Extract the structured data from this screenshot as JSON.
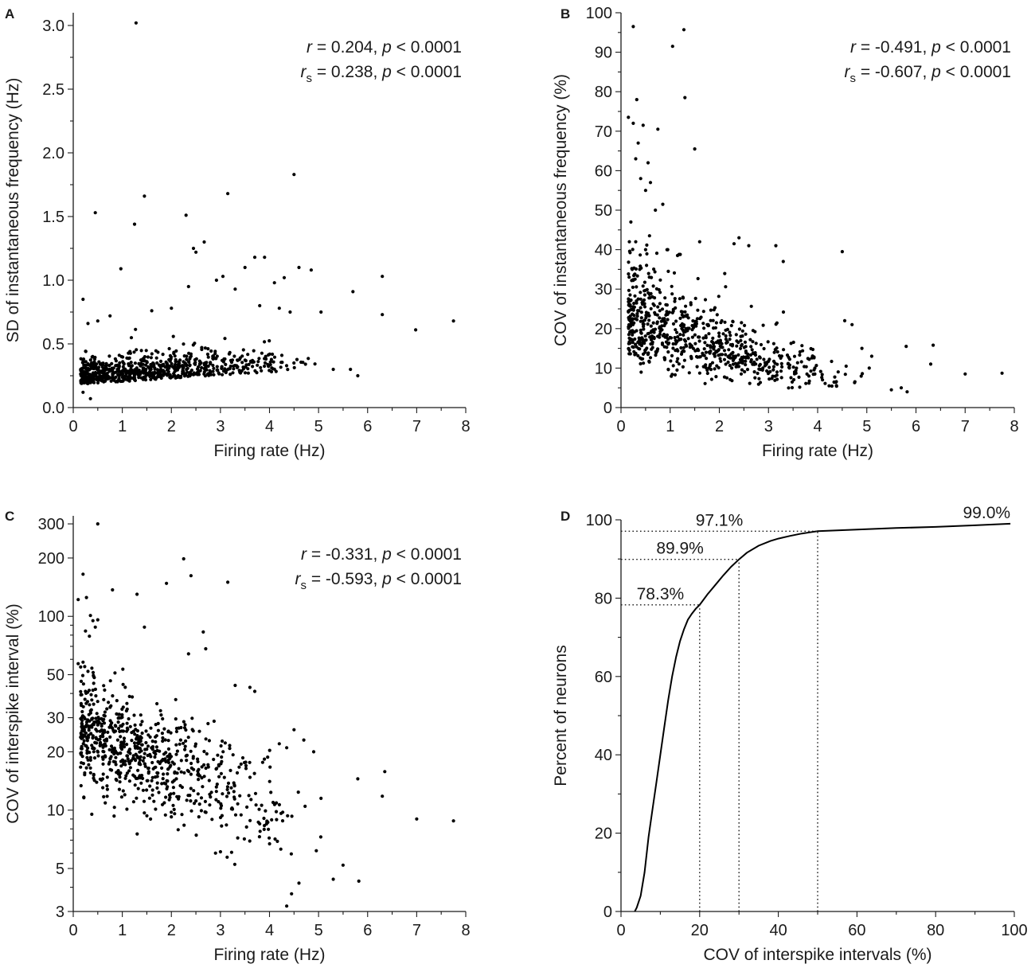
{
  "chart_data": [
    {
      "panel": "A",
      "type": "scatter",
      "xlabel": "Firing rate (Hz)",
      "ylabel": "SD of instantaneous frequency (Hz)",
      "xlim": [
        0,
        8
      ],
      "ylim": [
        0,
        3.1
      ],
      "xticks": [
        "0",
        "1",
        "2",
        "3",
        "4",
        "5",
        "6",
        "7",
        "8"
      ],
      "yticks": [
        "0.0",
        "0.5",
        "1.0",
        "1.5",
        "2.0",
        "2.5",
        "3.0"
      ],
      "stats": {
        "line1_sym": "r",
        "line1_val": " = 0.204, ",
        "line1_p": "p",
        "line1_pval": " < 0.0001",
        "line2_sym": "r",
        "line2_sub": "s",
        "line2_val": " = 0.238, ",
        "line2_p": "p",
        "line2_pval": " < 0.0001"
      },
      "points": [
        [
          1.28,
          3.02
        ],
        [
          4.5,
          1.83
        ],
        [
          3.15,
          1.68
        ],
        [
          1.45,
          1.66
        ],
        [
          0.45,
          1.53
        ],
        [
          2.3,
          1.51
        ],
        [
          1.25,
          1.44
        ],
        [
          2.67,
          1.3
        ],
        [
          2.45,
          1.25
        ],
        [
          2.5,
          1.22
        ],
        [
          3.7,
          1.18
        ],
        [
          3.9,
          1.18
        ],
        [
          3.5,
          1.1
        ],
        [
          4.6,
          1.1
        ],
        [
          4.85,
          1.08
        ],
        [
          0.97,
          1.09
        ],
        [
          4.3,
          1.02
        ],
        [
          2.92,
          1.0
        ],
        [
          3.05,
          1.03
        ],
        [
          4.1,
          0.98
        ],
        [
          6.3,
          1.03
        ],
        [
          2.35,
          0.95
        ],
        [
          3.3,
          0.93
        ],
        [
          5.7,
          0.91
        ],
        [
          0.2,
          0.85
        ],
        [
          3.8,
          0.8
        ],
        [
          4.2,
          0.78
        ],
        [
          2.0,
          0.78
        ],
        [
          1.6,
          0.76
        ],
        [
          6.3,
          0.73
        ],
        [
          5.05,
          0.75
        ],
        [
          4.42,
          0.75
        ],
        [
          0.75,
          0.72
        ],
        [
          0.3,
          0.66
        ],
        [
          0.5,
          0.68
        ],
        [
          7.75,
          0.68
        ],
        [
          6.98,
          0.61
        ],
        [
          5.3,
          0.3
        ],
        [
          5.65,
          0.3
        ],
        [
          5.8,
          0.25
        ],
        [
          0.2,
          0.12
        ],
        [
          0.35,
          0.07
        ]
      ]
    },
    {
      "panel": "B",
      "type": "scatter",
      "xlabel": "Firing rate (Hz)",
      "ylabel": "COV of instantaneous frequency (%)",
      "xlim": [
        0,
        8
      ],
      "ylim": [
        0,
        100
      ],
      "xticks": [
        "0",
        "1",
        "2",
        "3",
        "4",
        "5",
        "6",
        "7",
        "8"
      ],
      "yticks": [
        "0",
        "10",
        "20",
        "30",
        "40",
        "50",
        "60",
        "70",
        "80",
        "90",
        "100"
      ],
      "stats": {
        "line1_sym": "r",
        "line1_val": " = -0.491, ",
        "line1_p": "p",
        "line1_pval": " < 0.0001",
        "line2_sym": "r",
        "line2_sub": "s",
        "line2_val": " = -0.607, ",
        "line2_p": "p",
        "line2_pval": " < 0.0001"
      },
      "points": [
        [
          0.25,
          96.5
        ],
        [
          1.28,
          95.7
        ],
        [
          1.05,
          91.5
        ],
        [
          1.3,
          78.5
        ],
        [
          0.32,
          78
        ],
        [
          0.15,
          73.5
        ],
        [
          0.25,
          72
        ],
        [
          0.45,
          71.5
        ],
        [
          0.75,
          70.5
        ],
        [
          0.35,
          67
        ],
        [
          1.5,
          65.5
        ],
        [
          0.3,
          63
        ],
        [
          0.55,
          62
        ],
        [
          0.4,
          58
        ],
        [
          0.6,
          57
        ],
        [
          0.5,
          55
        ],
        [
          0.7,
          50
        ],
        [
          0.85,
          51.5
        ],
        [
          0.2,
          47
        ],
        [
          0.58,
          43.5
        ],
        [
          0.38,
          35
        ],
        [
          1.6,
          42
        ],
        [
          2.4,
          43
        ],
        [
          4.5,
          39.5
        ],
        [
          3.15,
          41
        ],
        [
          0.5,
          40
        ],
        [
          2.6,
          41
        ],
        [
          2.3,
          41.5
        ],
        [
          0.95,
          40
        ],
        [
          1.15,
          38.5
        ],
        [
          3.3,
          37
        ],
        [
          0.35,
          27.5
        ],
        [
          0.38,
          16.5
        ],
        [
          5.8,
          15.5
        ],
        [
          6.35,
          15.8
        ],
        [
          6.3,
          11
        ],
        [
          7.0,
          8.5
        ],
        [
          7.75,
          8.7
        ],
        [
          5.5,
          4.5
        ],
        [
          5.7,
          5
        ],
        [
          5.82,
          4
        ],
        [
          4.9,
          15
        ],
        [
          4.7,
          21
        ],
        [
          5.1,
          13
        ],
        [
          5.05,
          10
        ],
        [
          4.55,
          22
        ]
      ]
    },
    {
      "panel": "C",
      "type": "scatter",
      "yscale": "log",
      "xlabel": "Firing rate (Hz)",
      "ylabel": "COV of interspike interval (%)",
      "xlim": [
        0,
        8
      ],
      "ylim": [
        3,
        330
      ],
      "xticks": [
        "0",
        "1",
        "2",
        "3",
        "4",
        "5",
        "6",
        "7",
        "8"
      ],
      "ytick_values": [
        3,
        5,
        10,
        20,
        30,
        50,
        100,
        200,
        300
      ],
      "yticks": [
        "3",
        "5",
        "10",
        "20",
        "30",
        "50",
        "100",
        "200",
        "300"
      ],
      "stats": {
        "line1_sym": "r",
        "line1_val": " = -0.331, ",
        "line1_p": "p",
        "line1_pval": " < 0.0001",
        "line2_sym": "r",
        "line2_sub": "s",
        "line2_val": " = -0.593, ",
        "line2_p": "p",
        "line2_pval": " < 0.0001"
      },
      "points": [
        [
          0.5,
          300
        ],
        [
          2.25,
          198
        ],
        [
          0.2,
          165
        ],
        [
          2.4,
          162
        ],
        [
          3.15,
          150
        ],
        [
          0.1,
          122
        ],
        [
          0.27,
          125
        ],
        [
          0.8,
          137
        ],
        [
          1.3,
          130
        ],
        [
          1.9,
          148
        ],
        [
          2.65,
          83
        ],
        [
          2.7,
          68
        ],
        [
          0.4,
          95
        ],
        [
          0.5,
          96
        ],
        [
          0.45,
          88
        ],
        [
          0.25,
          84
        ],
        [
          0.33,
          79
        ],
        [
          0.35,
          101
        ],
        [
          1.45,
          88
        ],
        [
          2.35,
          64
        ],
        [
          0.1,
          57
        ],
        [
          0.2,
          58
        ],
        [
          0.38,
          54
        ],
        [
          0.3,
          52
        ],
        [
          3.3,
          44
        ],
        [
          3.6,
          43
        ],
        [
          3.7,
          41
        ],
        [
          0.85,
          51
        ],
        [
          4.5,
          26
        ],
        [
          4.7,
          23
        ],
        [
          4.2,
          22
        ],
        [
          4.35,
          21
        ],
        [
          4.9,
          20
        ],
        [
          5.8,
          14.5
        ],
        [
          6.35,
          15.8
        ],
        [
          6.3,
          11.8
        ],
        [
          5.05,
          11.5
        ],
        [
          7.0,
          9
        ],
        [
          7.75,
          8.8
        ],
        [
          5.5,
          5.2
        ],
        [
          5.3,
          4.4
        ],
        [
          5.82,
          4.3
        ],
        [
          4.35,
          3.2
        ],
        [
          4.45,
          3.7
        ],
        [
          4.6,
          4.2
        ],
        [
          0.35,
          16.5
        ],
        [
          0.6,
          14.5
        ],
        [
          1.05,
          12
        ],
        [
          3.8,
          8.5
        ],
        [
          2.9,
          6
        ]
      ]
    },
    {
      "panel": "D",
      "type": "line",
      "xlabel": "COV of interspike intervals (%)",
      "ylabel": "Percent of neurons",
      "xlim": [
        0,
        100
      ],
      "ylim": [
        0,
        100
      ],
      "xticks": [
        "0",
        "20",
        "40",
        "60",
        "80",
        "100"
      ],
      "yticks": [
        "0",
        "20",
        "40",
        "60",
        "80",
        "100"
      ],
      "x": [
        3.5,
        4,
        5,
        6,
        7,
        8,
        9,
        10,
        11,
        12,
        13,
        14,
        15,
        16,
        17,
        18,
        19,
        20,
        22,
        24,
        26,
        28,
        30,
        32,
        35,
        38,
        40,
        43,
        46,
        50,
        55,
        60,
        70,
        80,
        90,
        99
      ],
      "y": [
        0,
        1,
        4,
        10,
        19,
        26,
        33,
        40,
        47,
        54,
        60,
        65,
        69,
        72,
        74.5,
        76,
        77.3,
        78.3,
        81,
        83.4,
        85.8,
        88,
        89.9,
        91.6,
        93.4,
        94.6,
        95.2,
        95.9,
        96.5,
        97.1,
        97.3,
        97.5,
        97.9,
        98.2,
        98.6,
        99.0
      ],
      "annotations": [
        {
          "x": 20,
          "y": 78.3,
          "label": "78.3%"
        },
        {
          "x": 30,
          "y": 89.9,
          "label": "89.9%"
        },
        {
          "x": 50,
          "y": 97.1,
          "label": "97.1%"
        },
        {
          "x": 99,
          "y": 99.0,
          "label": "99.0%"
        }
      ]
    }
  ]
}
